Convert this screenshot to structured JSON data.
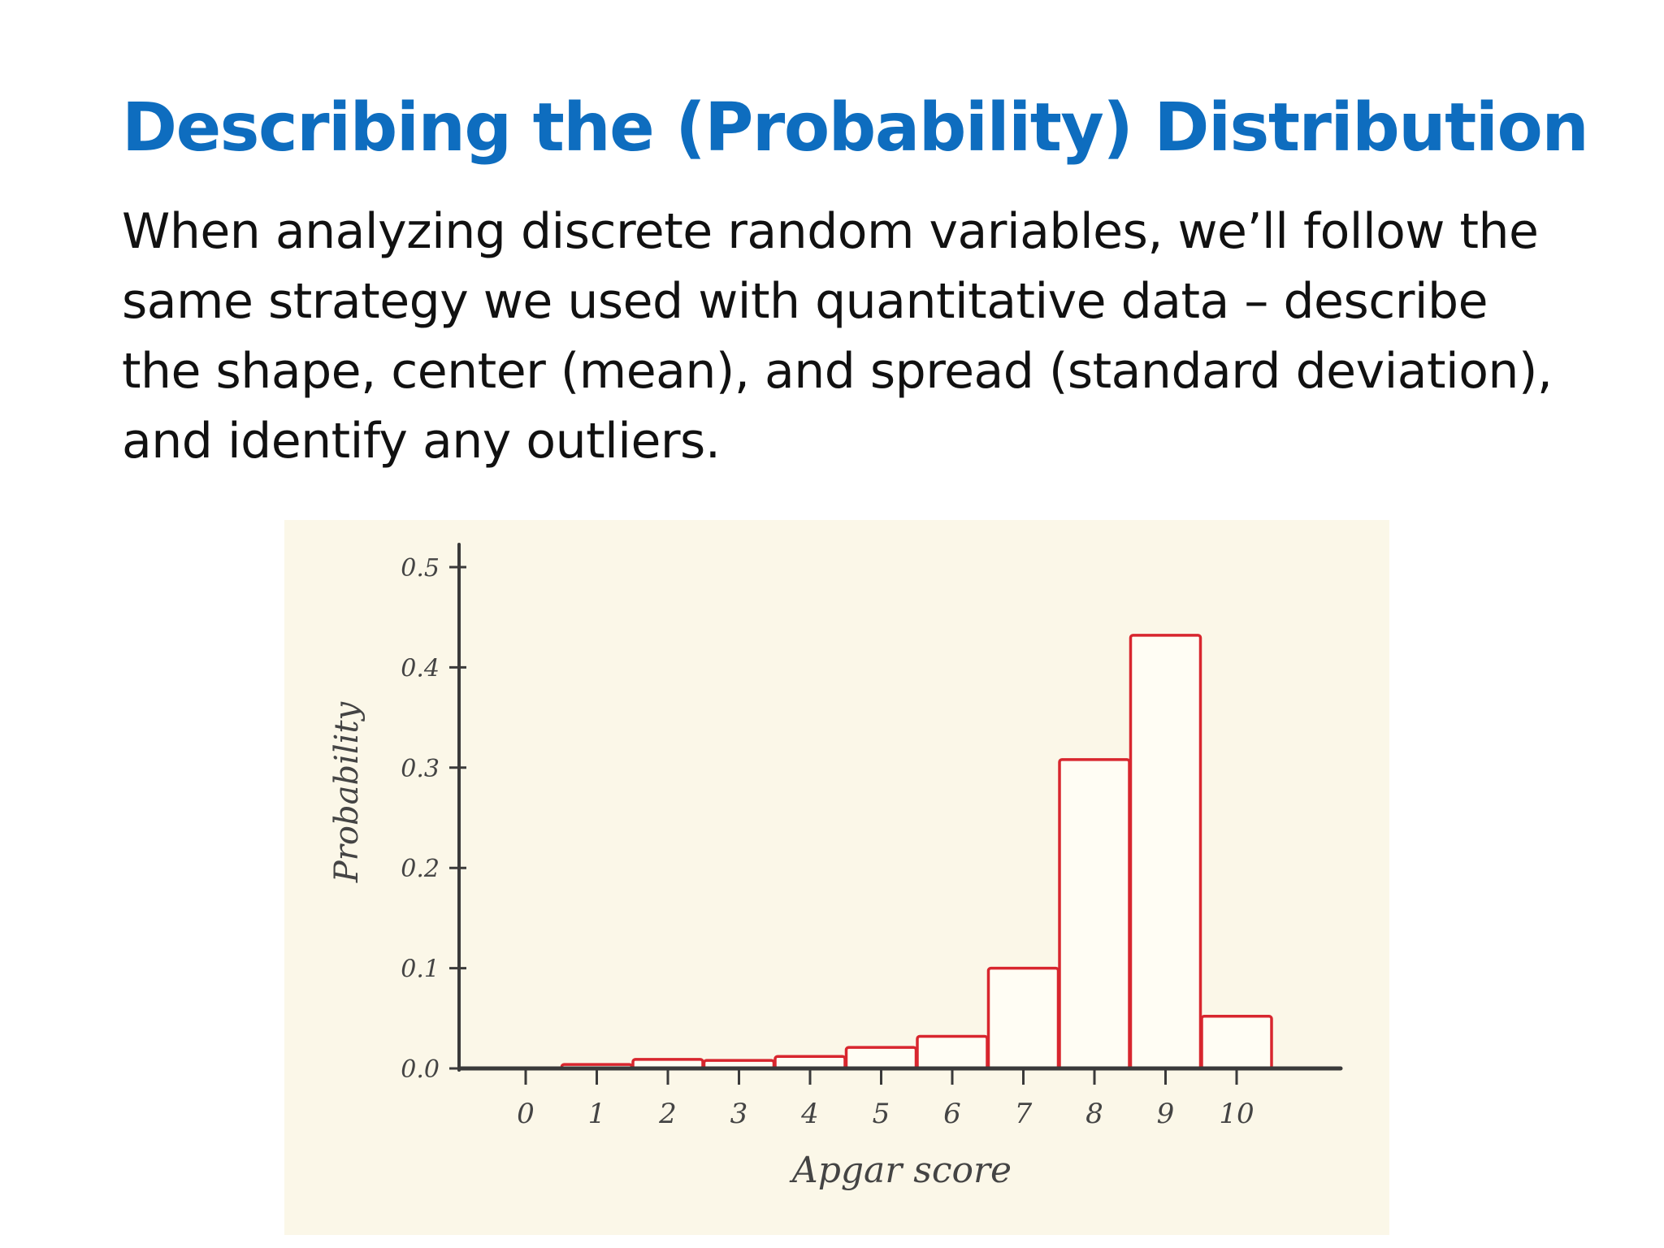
{
  "slide": {
    "title": "Describing the (Probability) Distribution",
    "body": "When analyzing discrete random variables, we’ll follow the same strategy we used with quantitative data – describe the shape, center (mean), and spread (standard deviation), and identify any outliers."
  },
  "chart_data": {
    "type": "bar",
    "title": "",
    "xlabel": "Apgar score",
    "ylabel": "Probability",
    "categories": [
      "0",
      "1",
      "2",
      "3",
      "4",
      "5",
      "6",
      "7",
      "8",
      "9",
      "10"
    ],
    "values": [
      0.0,
      0.004,
      0.009,
      0.008,
      0.012,
      0.021,
      0.032,
      0.1,
      0.308,
      0.432,
      0.052
    ],
    "yticks": [
      "0.0",
      "0.1",
      "0.2",
      "0.3",
      "0.4",
      "0.5"
    ],
    "ylim": [
      0,
      0.5
    ],
    "grid": false,
    "colors": {
      "bar_stroke": "#d8262e",
      "bar_fill": "#fffdf4",
      "axis": "#3a3a3a",
      "text": "#444444",
      "background": "#fbf7e8"
    }
  }
}
